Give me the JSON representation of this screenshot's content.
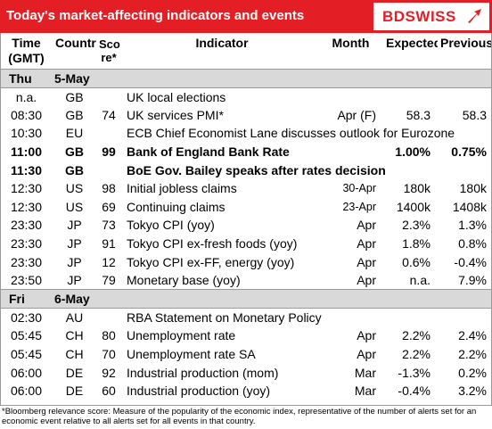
{
  "title": "Today's market-affecting indicators and events",
  "logo": {
    "text": "BDSWISS",
    "mark": "bdswiss-arrow-logo",
    "color": "#e31e24"
  },
  "colors": {
    "banner": "#e31e24",
    "day_bar": "#d9d9d9"
  },
  "headers": {
    "time_1": "Time",
    "time_2": "(GMT)",
    "country": "Country",
    "score_1": "Sco",
    "score_2": "re*",
    "indicator": "Indicator",
    "month": "Month",
    "expected": "Expected",
    "previous": "Previous"
  },
  "days": [
    {
      "day": "Thu",
      "date": "5-May",
      "rows": [
        {
          "time": "n.a.",
          "country": "GB",
          "score": "",
          "indicator": "UK local elections",
          "month": "",
          "expected": "",
          "previous": "",
          "bold": false
        },
        {
          "time": "08:30",
          "country": "GB",
          "score": "74",
          "indicator": "UK services PMI*",
          "month": "Apr (F)",
          "expected": "58.3",
          "previous": "58.3",
          "bold": false
        },
        {
          "time": "10:30",
          "country": "EU",
          "score": "",
          "indicator": "ECB Chief Economist Lane discusses outlook for Eurozone",
          "month": "",
          "expected": "",
          "previous": "",
          "bold": false
        },
        {
          "time": "11:00",
          "country": "GB",
          "score": "99",
          "indicator": "Bank of England Bank Rate",
          "month": "",
          "expected": "1.00%",
          "previous": "0.75%",
          "bold": true
        },
        {
          "time": "11:30",
          "country": "GB",
          "score": "",
          "indicator": "BoE Gov. Bailey speaks after rates decision",
          "month": "",
          "expected": "",
          "previous": "",
          "bold": true
        },
        {
          "time": "12:30",
          "country": "US",
          "score": "98",
          "indicator": "Initial jobless claims",
          "month": "30-Apr",
          "expected": "180k",
          "previous": "180k",
          "bold": false,
          "small_month": true
        },
        {
          "time": "12:30",
          "country": "US",
          "score": "69",
          "indicator": "Continuing claims",
          "month": "23-Apr",
          "expected": "1400k",
          "previous": "1408k",
          "bold": false,
          "small_month": true
        },
        {
          "time": "23:30",
          "country": "JP",
          "score": "73",
          "indicator": "Tokyo CPI (yoy)",
          "month": "Apr",
          "expected": "2.3%",
          "previous": "1.3%",
          "bold": false
        },
        {
          "time": "23:30",
          "country": "JP",
          "score": "91",
          "indicator": "Tokyo CPI ex-fresh foods (yoy)",
          "month": "Apr",
          "expected": "1.8%",
          "previous": "0.8%",
          "bold": false
        },
        {
          "time": "23:30",
          "country": "JP",
          "score": "12",
          "indicator": "Tokyo CPI ex-FF, energy (yoy)",
          "month": "Apr",
          "expected": "0.6%",
          "previous": "-0.4%",
          "bold": false
        },
        {
          "time": "23:50",
          "country": "JP",
          "score": "79",
          "indicator": "Monetary base (yoy)",
          "month": "Apr",
          "expected": "n.a.",
          "previous": "7.9%",
          "bold": false
        }
      ]
    },
    {
      "day": "Fri",
      "date": "6-May",
      "rows": [
        {
          "time": "02:30",
          "country": "AU",
          "score": "",
          "indicator": "RBA Statement on Monetary Policy",
          "month": "",
          "expected": "",
          "previous": "",
          "bold": false
        },
        {
          "time": "05:45",
          "country": "CH",
          "score": "80",
          "indicator": "Unemployment rate",
          "month": "Apr",
          "expected": "2.2%",
          "previous": "2.4%",
          "bold": false
        },
        {
          "time": "05:45",
          "country": "CH",
          "score": "70",
          "indicator": "Unemployment rate SA",
          "month": "Apr",
          "expected": "2.2%",
          "previous": "2.2%",
          "bold": false
        },
        {
          "time": "06:00",
          "country": "DE",
          "score": "92",
          "indicator": "Industrial production (mom)",
          "month": "Mar",
          "expected": "-1.3%",
          "previous": "0.2%",
          "bold": false
        },
        {
          "time": "06:00",
          "country": "DE",
          "score": "60",
          "indicator": "Industrial production (yoy)",
          "month": "Mar",
          "expected": "-0.4%",
          "previous": "3.2%",
          "bold": false
        }
      ]
    }
  ],
  "footnote": "*Bloomberg relevance score: Measure of the popularity of the economic index, representative of the number of alerts set for an economic event relative to all alerts set for all events in that country."
}
